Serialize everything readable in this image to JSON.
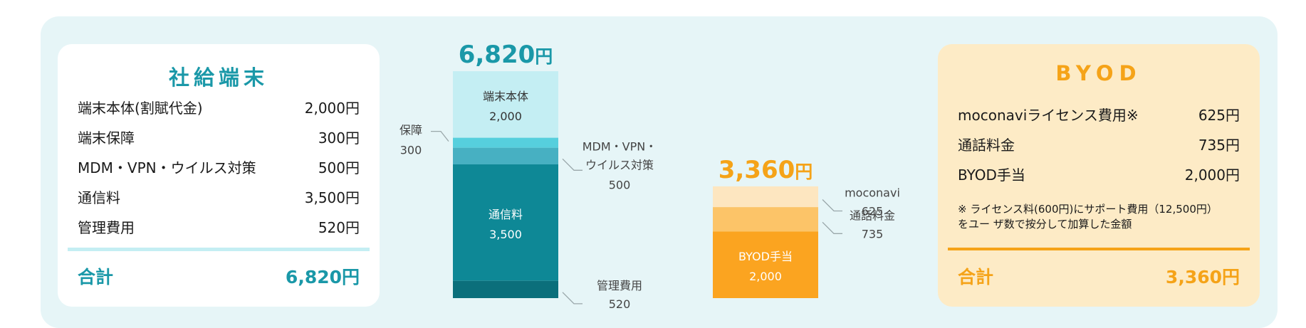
{
  "company": {
    "title": "社給端末",
    "items": [
      {
        "label": "端末本体(割賦代金)",
        "value": "2,000円"
      },
      {
        "label": "端末保障",
        "value": "300円"
      },
      {
        "label": "MDM・VPN・ウイルス対策",
        "value": "500円"
      },
      {
        "label": "通信料",
        "value": "3,500円"
      },
      {
        "label": "管理費用",
        "value": "520円"
      }
    ],
    "total_label": "合計",
    "total_value": "6,820円"
  },
  "byod": {
    "title": "BYOD",
    "items": [
      {
        "label": "moconaviライセンス費用※",
        "value": "625円"
      },
      {
        "label": "通話料金",
        "value": "735円"
      },
      {
        "label": "BYOD手当",
        "value": "2,000円"
      }
    ],
    "note_line1": "※ ライセンス料(600円)にサポート費用（12,500円）",
    "note_line2": "をユー ザ数で按分して加算した金額",
    "total_label": "合計",
    "total_value": "3,360円"
  },
  "chart_data": [
    {
      "type": "bar",
      "stacked": true,
      "total_number": "6,820",
      "total_unit": "円",
      "segments": [
        {
          "name": "端末本体",
          "value": 2000,
          "label": "2,000",
          "placement": "inside",
          "color": "#c4eef3",
          "text_color": "#333333"
        },
        {
          "name": "保障",
          "value": 300,
          "label": "300",
          "placement": "left",
          "color": "#56cfdd"
        },
        {
          "name": "MDM・VPN・",
          "name2": "ウイルス対策",
          "value": 500,
          "label": "500",
          "placement": "right",
          "color": "#47b0c2"
        },
        {
          "name": "通信料",
          "value": 3500,
          "label": "3,500",
          "placement": "inside",
          "color": "#0e8896",
          "text_color": "#ffffff"
        },
        {
          "name": "管理費用",
          "value": 520,
          "label": "520",
          "placement": "right",
          "color": "#0b6f7b"
        }
      ],
      "colors": {
        "total": "#1a98a8"
      }
    },
    {
      "type": "bar",
      "stacked": true,
      "total_number": "3,360",
      "total_unit": "円",
      "segments": [
        {
          "name": "moconavi",
          "value": 625,
          "label": "625",
          "placement": "right",
          "color": "#fde6c0"
        },
        {
          "name": "通話料金",
          "value": 735,
          "label": "735",
          "placement": "right",
          "color": "#fcc468"
        },
        {
          "name": "BYOD手当",
          "value": 2000,
          "label": "2,000",
          "placement": "inside",
          "color": "#fba420",
          "text_color": "#ffffff"
        }
      ],
      "colors": {
        "total": "#f5a318"
      }
    }
  ]
}
